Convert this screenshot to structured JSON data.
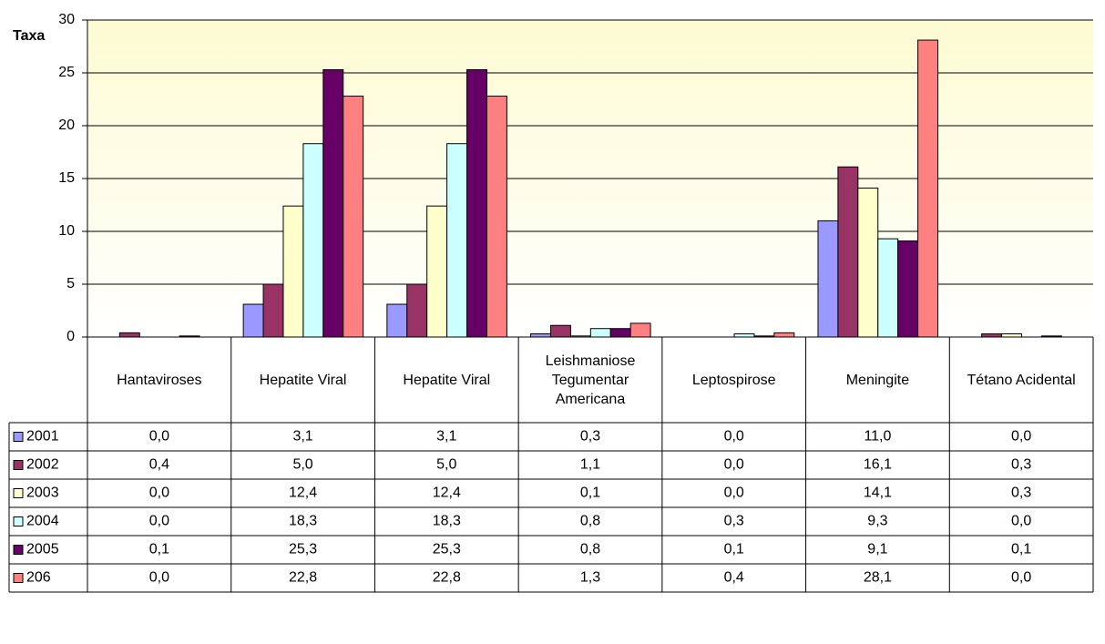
{
  "chart_data": {
    "type": "bar",
    "y_label": "Taxa",
    "categories": [
      "Hantaviroses",
      "Hepatite Viral",
      "Hepatite Viral",
      "Leishmaniose Tegumentar Americana",
      "Leptospirose",
      "Meningite",
      "Tétano Acidental"
    ],
    "series": [
      {
        "name": "2001",
        "color": "#9999ff",
        "values": [
          0.0,
          3.1,
          3.1,
          0.3,
          0.0,
          11.0,
          0.0
        ],
        "value_labels": [
          "0,0",
          "3,1",
          "3,1",
          "0,3",
          "0,0",
          "11,0",
          "0,0"
        ]
      },
      {
        "name": "2002",
        "color": "#993366",
        "values": [
          0.4,
          5.0,
          5.0,
          1.1,
          0.0,
          16.1,
          0.3
        ],
        "value_labels": [
          "0,4",
          "5,0",
          "5,0",
          "1,1",
          "0,0",
          "16,1",
          "0,3"
        ]
      },
      {
        "name": "2003",
        "color": "#ffffcc",
        "values": [
          0.0,
          12.4,
          12.4,
          0.1,
          0.0,
          14.1,
          0.3
        ],
        "value_labels": [
          "0,0",
          "12,4",
          "12,4",
          "0,1",
          "0,0",
          "14,1",
          "0,3"
        ]
      },
      {
        "name": "2004",
        "color": "#ccffff",
        "values": [
          0.0,
          18.3,
          18.3,
          0.8,
          0.3,
          9.3,
          0.0
        ],
        "value_labels": [
          "0,0",
          "18,3",
          "18,3",
          "0,8",
          "0,3",
          "9,3",
          "0,0"
        ]
      },
      {
        "name": "2005",
        "color": "#660066",
        "values": [
          0.1,
          25.3,
          25.3,
          0.8,
          0.1,
          9.1,
          0.1
        ],
        "value_labels": [
          "0,1",
          "25,3",
          "25,3",
          "0,8",
          "0,1",
          "9,1",
          "0,1"
        ]
      },
      {
        "name": "206",
        "color": "#ff8080",
        "values": [
          0.0,
          22.8,
          22.8,
          1.3,
          0.4,
          28.1,
          0.0
        ],
        "value_labels": [
          "0,0",
          "22,8",
          "22,8",
          "1,3",
          "0,4",
          "28,1",
          "0,0"
        ]
      }
    ],
    "ylim": [
      0,
      30
    ],
    "yticks": [
      0,
      5,
      10,
      15,
      20,
      25,
      30
    ],
    "grid": true
  }
}
